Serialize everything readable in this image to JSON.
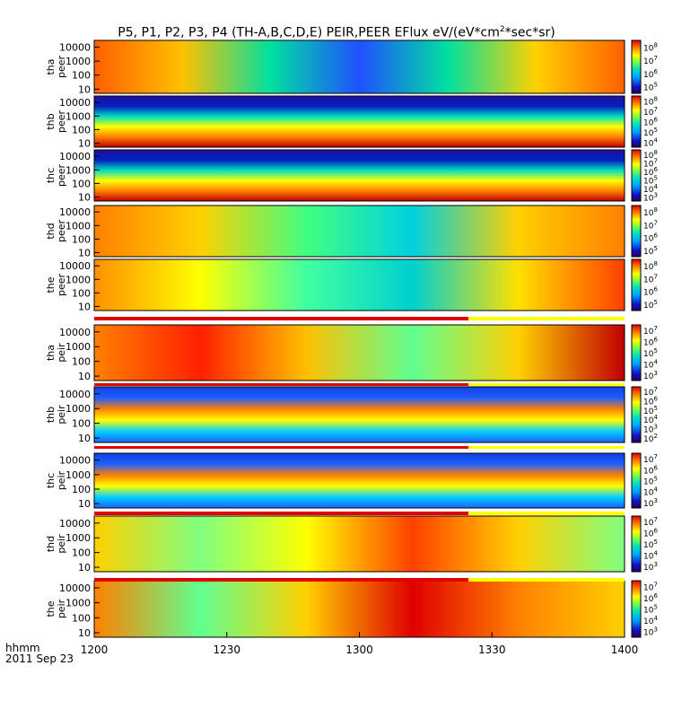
{
  "chart_data": {
    "type": "heatmap",
    "title_text": "P5, P1, P2, P3, P4 (TH-A,B,C,D,E) PEIR,PEER EFlux eV/(eV*cm",
    "title_sup": "2",
    "title_tail": "*sec*sr)",
    "date_label": "2011 Sep 23",
    "time_format_label": "hhmm",
    "x_ticks": [
      "1200",
      "1230",
      "1300",
      "1330",
      "1400"
    ],
    "x_range": [
      "12:00",
      "14:00"
    ],
    "y_scale": "log",
    "y_ticks": [
      "10",
      "100",
      "1000",
      "10000"
    ],
    "panels": [
      {
        "probe": "tha",
        "species": "peer",
        "colorbar_exponents": [
          "5",
          "6",
          "7",
          "8"
        ],
        "colorbar_range": [
          100000,
          100000000
        ]
      },
      {
        "probe": "thb",
        "species": "peer",
        "colorbar_exponents": [
          "4",
          "5",
          "6",
          "7",
          "8"
        ],
        "colorbar_range": [
          10000,
          100000000
        ]
      },
      {
        "probe": "thc",
        "species": "peer",
        "colorbar_exponents": [
          "3",
          "4",
          "5",
          "6",
          "7",
          "8"
        ],
        "colorbar_range": [
          1000,
          100000000
        ]
      },
      {
        "probe": "thd",
        "species": "peer",
        "colorbar_exponents": [
          "5",
          "6",
          "7",
          "8"
        ],
        "colorbar_range": [
          100000,
          100000000
        ]
      },
      {
        "probe": "the",
        "species": "peer",
        "colorbar_exponents": [
          "5",
          "6",
          "7",
          "8"
        ],
        "colorbar_range": [
          100000,
          100000000
        ]
      },
      {
        "probe": "tha",
        "species": "peir",
        "colorbar_exponents": [
          "3",
          "4",
          "5",
          "6",
          "7"
        ],
        "colorbar_range": [
          1000,
          10000000
        ]
      },
      {
        "probe": "thb",
        "species": "peir",
        "colorbar_exponents": [
          "2",
          "3",
          "4",
          "5",
          "6",
          "7"
        ],
        "colorbar_range": [
          100,
          10000000
        ]
      },
      {
        "probe": "thc",
        "species": "peir",
        "colorbar_exponents": [
          "3",
          "4",
          "5",
          "6",
          "7"
        ],
        "colorbar_range": [
          1000,
          10000000
        ]
      },
      {
        "probe": "thd",
        "species": "peir",
        "colorbar_exponents": [
          "3",
          "4",
          "5",
          "6",
          "7"
        ],
        "colorbar_range": [
          1000,
          10000000
        ]
      },
      {
        "probe": "the",
        "species": "peir",
        "colorbar_exponents": [
          "3",
          "4",
          "5",
          "6",
          "7"
        ],
        "colorbar_range": [
          1000,
          10000000
        ]
      }
    ]
  }
}
